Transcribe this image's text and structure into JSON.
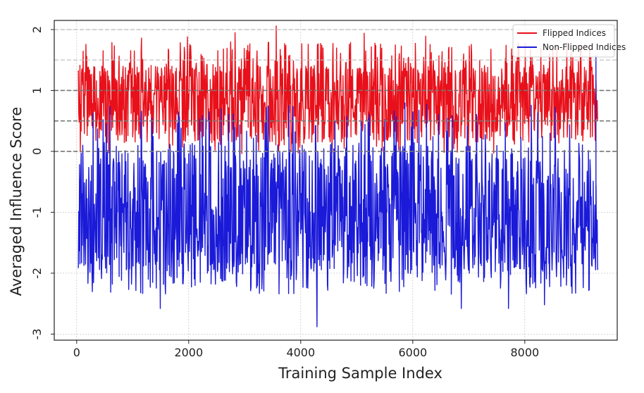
{
  "chart_data": {
    "type": "line",
    "xlabel": "Training Sample Index",
    "ylabel": "Averaged Influence Score",
    "xlim": [
      -400,
      9650
    ],
    "ylim": [
      -3.1,
      2.15
    ],
    "xticks": [
      0,
      2000,
      4000,
      6000,
      8000
    ],
    "xtick_labels": [
      "0",
      "2000",
      "4000",
      "6000",
      "8000"
    ],
    "yticks": [
      -3,
      -2,
      -1,
      0,
      1,
      2
    ],
    "ytick_labels": [
      "-3",
      "-2",
      "-1",
      "0",
      "1",
      "2"
    ],
    "grid": true,
    "reference_lines": [
      0,
      0.5,
      1.0,
      1.5,
      2.0
    ],
    "legend": {
      "position": "top-right"
    },
    "sample_count": 9300,
    "series": [
      {
        "name": "Flipped Indices",
        "color": "#e8101a",
        "summary": {
          "min": -0.05,
          "max": 2.06,
          "typical_range": [
            0.2,
            1.5
          ]
        },
        "peaks": [
          {
            "x": 1160,
            "y": 1.86
          },
          {
            "x": 1980,
            "y": 1.88
          },
          {
            "x": 2830,
            "y": 1.95
          },
          {
            "x": 3560,
            "y": 2.06
          },
          {
            "x": 5130,
            "y": 1.94
          },
          {
            "x": 6230,
            "y": 1.89
          },
          {
            "x": 9000,
            "y": 1.75
          }
        ]
      },
      {
        "name": "Non-Flipped Indices",
        "color": "#1a1ad8",
        "summary": {
          "min": -2.88,
          "max": 1.58,
          "typical_range": [
            -1.9,
            0.2
          ]
        },
        "troughs": [
          {
            "x": 1490,
            "y": -2.58
          },
          {
            "x": 4290,
            "y": -2.88
          },
          {
            "x": 6870,
            "y": -2.58
          },
          {
            "x": 7710,
            "y": -2.58
          },
          {
            "x": 8350,
            "y": -2.52
          }
        ]
      }
    ]
  }
}
